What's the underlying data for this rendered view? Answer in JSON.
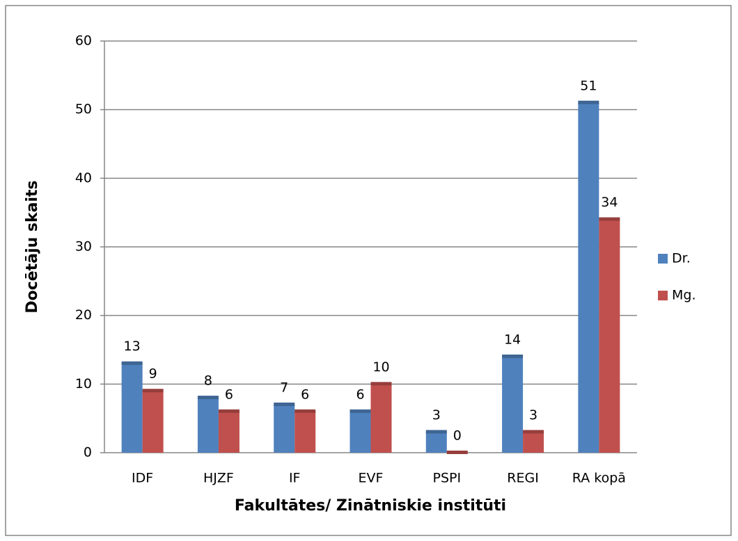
{
  "chart_data": {
    "type": "bar",
    "x_label": "Fakultātes/ Zinātniskie institūti",
    "y_label": "Docētāju skaits",
    "categories": [
      "IDF",
      "HJZF",
      "IF",
      "EVF",
      "PSPI",
      "REGI",
      "RA kopā"
    ],
    "series": [
      {
        "name": "Dr.",
        "color": "#4f81bd",
        "values": [
          13,
          8,
          7,
          6,
          3,
          14,
          51
        ]
      },
      {
        "name": "Mg.",
        "color": "#c0504d",
        "values": [
          9,
          6,
          6,
          10,
          0,
          3,
          34
        ]
      }
    ],
    "ylim": [
      0,
      60
    ],
    "yticks": [
      0,
      10,
      20,
      30,
      40,
      50,
      60
    ],
    "grid": true,
    "legend": "right"
  }
}
